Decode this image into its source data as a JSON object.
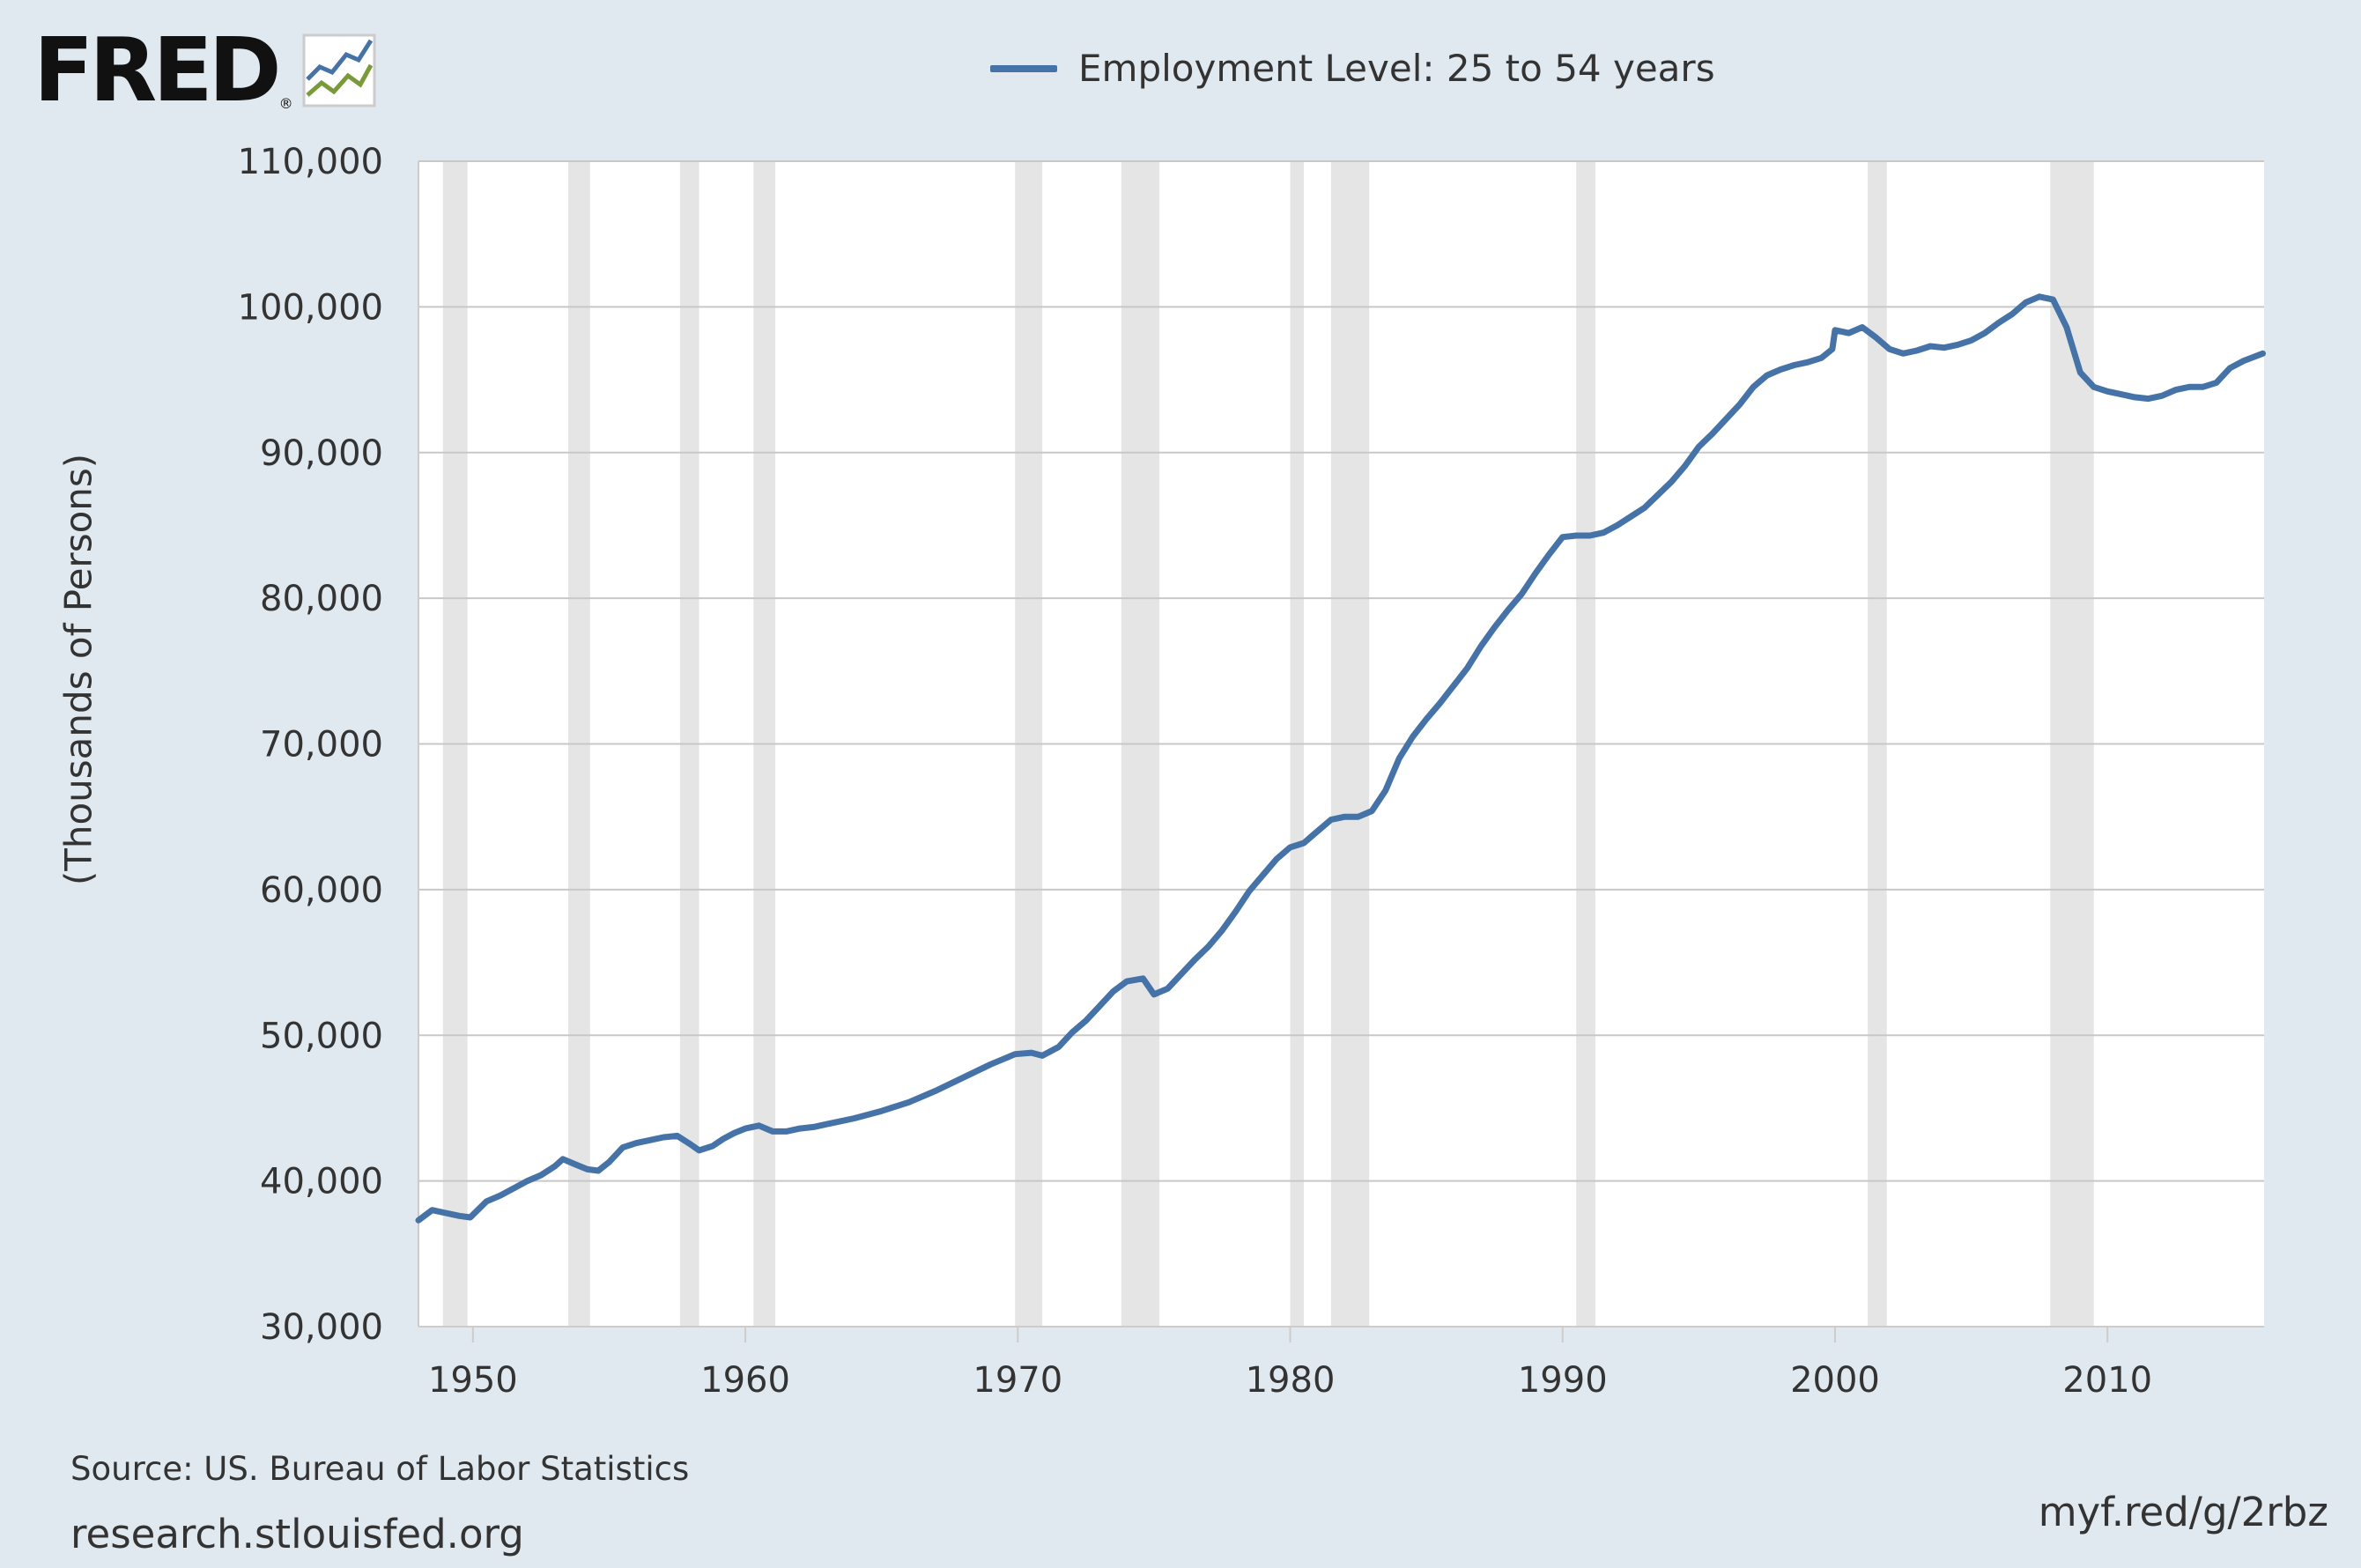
{
  "header": {
    "logo_text": "FRED",
    "logo_reg": "®",
    "logo_icon": "fred-chart-icon"
  },
  "colors": {
    "background": "#e1e9f0",
    "plot_background": "#ffffff",
    "series": "#4572a7",
    "recession": "#e5e5e5",
    "grid": "#c8c8c8"
  },
  "footer": {
    "source": "Source: US. Bureau of Labor Statistics",
    "site": "research.stlouisfed.org",
    "shortlink": "myf.red/g/2rbz"
  },
  "chart_data": {
    "type": "line",
    "title": "",
    "xlabel": "",
    "ylabel": "(Thousands of Persons)",
    "legend_position": "top",
    "grid": true,
    "xlim": [
      1948.0,
      2015.75
    ],
    "ylim": [
      30000,
      110000
    ],
    "x_ticks": [
      {
        "value": 1950,
        "label": "1950"
      },
      {
        "value": 1960,
        "label": "1960"
      },
      {
        "value": 1970,
        "label": "1970"
      },
      {
        "value": 1980,
        "label": "1980"
      },
      {
        "value": 1990,
        "label": "1990"
      },
      {
        "value": 2000,
        "label": "2000"
      },
      {
        "value": 2010,
        "label": "2010"
      }
    ],
    "y_ticks": [
      {
        "value": 30000,
        "label": "30,000"
      },
      {
        "value": 40000,
        "label": "40,000"
      },
      {
        "value": 50000,
        "label": "50,000"
      },
      {
        "value": 60000,
        "label": "60,000"
      },
      {
        "value": 70000,
        "label": "70,000"
      },
      {
        "value": 80000,
        "label": "80,000"
      },
      {
        "value": 90000,
        "label": "90,000"
      },
      {
        "value": 100000,
        "label": "100,000"
      },
      {
        "value": 110000,
        "label": "110,000"
      }
    ],
    "recessions": [
      [
        1948.9,
        1949.8
      ],
      [
        1953.5,
        1954.3
      ],
      [
        1957.6,
        1958.3
      ],
      [
        1960.3,
        1961.1
      ],
      [
        1969.9,
        1970.9
      ],
      [
        1973.8,
        1975.2
      ],
      [
        1980.0,
        1980.5
      ],
      [
        1981.5,
        1982.9
      ],
      [
        1990.5,
        1991.2
      ],
      [
        2001.2,
        2001.9
      ],
      [
        2007.9,
        2009.5
      ]
    ],
    "series": [
      {
        "name": "Employment Level: 25 to 54 years",
        "x": [
          1948.0,
          1948.5,
          1949.0,
          1949.5,
          1949.9,
          1950.5,
          1951.0,
          1951.5,
          1952.0,
          1952.5,
          1953.0,
          1953.3,
          1953.8,
          1954.2,
          1954.6,
          1955.0,
          1955.5,
          1956.0,
          1956.5,
          1957.0,
          1957.5,
          1958.0,
          1958.3,
          1958.8,
          1959.2,
          1959.6,
          1960.0,
          1960.5,
          1961.0,
          1961.5,
          1962.0,
          1962.5,
          1963.0,
          1963.5,
          1964.0,
          1965.0,
          1966.0,
          1967.0,
          1968.0,
          1969.0,
          1969.9,
          1970.5,
          1970.9,
          1971.5,
          1972.0,
          1972.5,
          1973.0,
          1973.5,
          1974.0,
          1974.6,
          1975.0,
          1975.5,
          1976.0,
          1976.5,
          1977.0,
          1977.5,
          1978.0,
          1978.5,
          1979.0,
          1979.5,
          1980.0,
          1980.5,
          1981.0,
          1981.5,
          1982.0,
          1982.5,
          1983.0,
          1983.5,
          1984.0,
          1984.5,
          1985.0,
          1985.5,
          1986.0,
          1986.5,
          1987.0,
          1987.5,
          1988.0,
          1988.5,
          1989.0,
          1989.5,
          1990.0,
          1990.5,
          1991.0,
          1991.5,
          1992.0,
          1992.5,
          1993.0,
          1993.5,
          1994.0,
          1994.5,
          1995.0,
          1995.5,
          1996.0,
          1996.5,
          1997.0,
          1997.5,
          1998.0,
          1998.5,
          1999.0,
          1999.5,
          1999.9,
          2000.0,
          2000.5,
          2001.0,
          2001.5,
          2002.0,
          2002.5,
          2003.0,
          2003.5,
          2004.0,
          2004.5,
          2005.0,
          2005.5,
          2006.0,
          2006.5,
          2007.0,
          2007.5,
          2008.0,
          2008.5,
          2009.0,
          2009.5,
          2010.0,
          2010.5,
          2011.0,
          2011.5,
          2012.0,
          2012.5,
          2013.0,
          2013.5,
          2014.0,
          2014.5,
          2015.0,
          2015.7
        ],
        "values": [
          37300,
          38000,
          37800,
          37600,
          37500,
          38600,
          39000,
          39500,
          40000,
          40400,
          41000,
          41500,
          41100,
          40800,
          40700,
          41300,
          42300,
          42600,
          42800,
          43000,
          43100,
          42500,
          42100,
          42400,
          42900,
          43300,
          43600,
          43800,
          43400,
          43400,
          43600,
          43700,
          43900,
          44100,
          44300,
          44800,
          45400,
          46200,
          47100,
          48000,
          48700,
          48800,
          48600,
          49200,
          50200,
          51000,
          52000,
          53000,
          53700,
          53900,
          52800,
          53200,
          54200,
          55200,
          56100,
          57200,
          58500,
          59900,
          61000,
          62100,
          62900,
          63200,
          64000,
          64800,
          65000,
          65000,
          65400,
          66800,
          69000,
          70500,
          71700,
          72800,
          74000,
          75200,
          76700,
          78000,
          79200,
          80300,
          81700,
          83000,
          84200,
          84300,
          84300,
          84500,
          85000,
          85600,
          86200,
          87100,
          88000,
          89100,
          90400,
          91300,
          92300,
          93300,
          94500,
          95300,
          95700,
          96000,
          96200,
          96500,
          97100,
          98400,
          98200,
          98600,
          97900,
          97100,
          96800,
          97000,
          97300,
          97200,
          97400,
          97700,
          98200,
          98900,
          99500,
          100300,
          100700,
          100500,
          98600,
          95500,
          94500,
          94200,
          94000,
          93800,
          93700,
          93900,
          94300,
          94500,
          94500,
          94800,
          95800,
          96300,
          96800
        ]
      }
    ]
  }
}
